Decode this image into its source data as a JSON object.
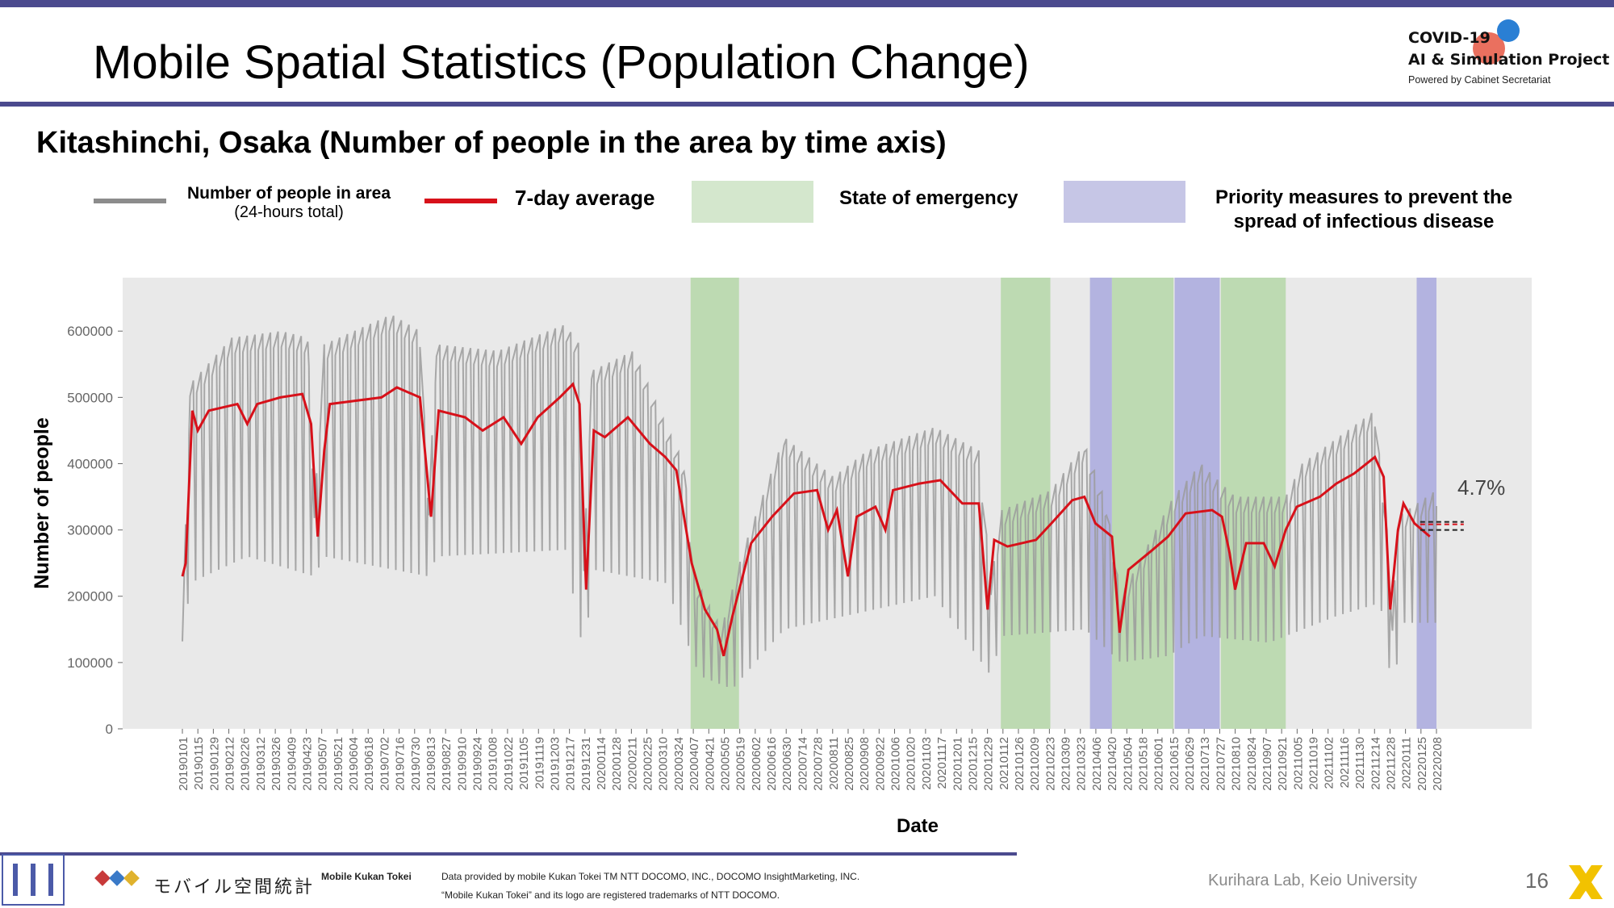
{
  "slide": {
    "title": "Mobile Spatial Statistics (Population Change)",
    "subtitle": "Kitashinchi, Osaka (Number of people in the area by time axis)",
    "page_number": "16",
    "credit": "Kurihara Lab, Keio University"
  },
  "logo": {
    "line1": "COVID-19",
    "line2": "AI & Simulation Project",
    "line3": "Powered by Cabinet Secretariat"
  },
  "legend": {
    "raw_line": "Number of people in area",
    "raw_line_sub": "(24-hours total)",
    "avg_line": "7-day average",
    "emergency": "State of emergency",
    "priority_1": "Priority measures to prevent the",
    "priority_2": "spread of infectious disease"
  },
  "footer": {
    "brand_jp": "モバイル空間統計",
    "brand_en": "Mobile Kukan Tokei",
    "note1": "Data provided by mobile Kukan Tokei TM NTT DOCOMO, INC., DOCOMO InsightMarketing, INC.",
    "note2": "“Mobile Kukan Tokei” and its logo are registered trademarks of NTT DOCOMO."
  },
  "colors": {
    "accent": "#4b4a8e",
    "raw_series": "#9b9b9b",
    "avg_series": "#d7111a",
    "emergency": "#b5d7a8",
    "priority": "#a9a9de",
    "plot_bg": "#e9e9e9"
  },
  "chart_data": {
    "type": "line",
    "xlabel": "Date",
    "ylabel": "Number of people",
    "ylim": [
      0,
      650000
    ],
    "yticks": [
      0,
      100000,
      200000,
      300000,
      400000,
      500000,
      600000
    ],
    "ytick_labels": [
      "0",
      "100000",
      "200000",
      "300000",
      "400000",
      "500000",
      "600000"
    ],
    "x_tick_labels": [
      "20190101",
      "20190115",
      "20190129",
      "20190212",
      "20190226",
      "20190312",
      "20190326",
      "20190409",
      "20190423",
      "20190507",
      "20190521",
      "20190604",
      "20190618",
      "20190702",
      "20190716",
      "20190730",
      "20190813",
      "20190827",
      "20190910",
      "20190924",
      "20191008",
      "20191022",
      "20191105",
      "20191119",
      "20191203",
      "20191217",
      "20191231",
      "20200114",
      "20200128",
      "20200211",
      "20200225",
      "20200310",
      "20200324",
      "20200407",
      "20200421",
      "20200505",
      "20200519",
      "20200602",
      "20200616",
      "20200630",
      "20200714",
      "20200728",
      "20200811",
      "20200825",
      "20200908",
      "20200922",
      "20201006",
      "20201020",
      "20201103",
      "20201117",
      "20201201",
      "20201215",
      "20201229",
      "20210112",
      "20210126",
      "20210209",
      "20210223",
      "20210309",
      "20210323",
      "20210406",
      "20210420",
      "20210504",
      "20210518",
      "20210601",
      "20210615",
      "20210629",
      "20210713",
      "20210727",
      "20210810",
      "20210824",
      "20210907",
      "20210921",
      "20211005",
      "20211019",
      "20211102",
      "20211116",
      "20211130",
      "20211214",
      "20211228",
      "20220111",
      "20220125",
      "20220208"
    ],
    "x_range": [
      "2019-01-01",
      "2022-02-14"
    ],
    "shaded_periods": [
      {
        "kind": "emergency",
        "start": "2020-04-07",
        "end": "2020-05-21"
      },
      {
        "kind": "emergency",
        "start": "2021-01-14",
        "end": "2021-02-28"
      },
      {
        "kind": "priority",
        "start": "2021-04-05",
        "end": "2021-04-25"
      },
      {
        "kind": "emergency",
        "start": "2021-04-25",
        "end": "2021-06-20"
      },
      {
        "kind": "priority",
        "start": "2021-06-21",
        "end": "2021-08-01"
      },
      {
        "kind": "emergency",
        "start": "2021-08-02",
        "end": "2021-09-30"
      },
      {
        "kind": "priority",
        "start": "2022-01-27",
        "end": "2022-02-14"
      }
    ],
    "series": [
      {
        "name": "Number of people in area",
        "style": "weekly oscillation: weekday peaks (upper envelope) and weekend troughs (lower envelope)",
        "upper_envelope": [
          {
            "x": "2019-01-01",
            "y": 150000
          },
          {
            "x": "2019-01-08",
            "y": 520000
          },
          {
            "x": "2019-02-15",
            "y": 590000
          },
          {
            "x": "2019-04-01",
            "y": 600000
          },
          {
            "x": "2019-04-25",
            "y": 590000
          },
          {
            "x": "2019-05-01",
            "y": 330000
          },
          {
            "x": "2019-05-10",
            "y": 580000
          },
          {
            "x": "2019-07-10",
            "y": 625000
          },
          {
            "x": "2019-08-05",
            "y": 600000
          },
          {
            "x": "2019-08-13",
            "y": 340000
          },
          {
            "x": "2019-08-20",
            "y": 580000
          },
          {
            "x": "2019-10-15",
            "y": 570000
          },
          {
            "x": "2019-12-15",
            "y": 610000
          },
          {
            "x": "2019-12-28",
            "y": 580000
          },
          {
            "x": "2020-01-01",
            "y": 250000
          },
          {
            "x": "2020-01-08",
            "y": 540000
          },
          {
            "x": "2020-02-15",
            "y": 570000
          },
          {
            "x": "2020-03-15",
            "y": 460000
          },
          {
            "x": "2020-04-01",
            "y": 400000
          },
          {
            "x": "2020-04-10",
            "y": 230000
          },
          {
            "x": "2020-05-05",
            "y": 150000
          },
          {
            "x": "2020-05-25",
            "y": 270000
          },
          {
            "x": "2020-07-01",
            "y": 440000
          },
          {
            "x": "2020-08-15",
            "y": 380000
          },
          {
            "x": "2020-09-15",
            "y": 420000
          },
          {
            "x": "2020-11-15",
            "y": 455000
          },
          {
            "x": "2020-12-25",
            "y": 420000
          },
          {
            "x": "2021-01-05",
            "y": 220000
          },
          {
            "x": "2021-01-15",
            "y": 330000
          },
          {
            "x": "2021-03-01",
            "y": 360000
          },
          {
            "x": "2021-03-31",
            "y": 430000
          },
          {
            "x": "2021-04-20",
            "y": 340000
          },
          {
            "x": "2021-05-03",
            "y": 200000
          },
          {
            "x": "2021-06-20",
            "y": 350000
          },
          {
            "x": "2021-07-15",
            "y": 400000
          },
          {
            "x": "2021-08-15",
            "y": 350000
          },
          {
            "x": "2021-09-30",
            "y": 350000
          },
          {
            "x": "2021-10-15",
            "y": 400000
          },
          {
            "x": "2021-12-20",
            "y": 480000
          },
          {
            "x": "2021-12-31",
            "y": 300000
          },
          {
            "x": "2022-01-05",
            "y": 160000
          },
          {
            "x": "2022-01-10",
            "y": 320000
          },
          {
            "x": "2022-02-14",
            "y": 360000
          }
        ],
        "lower_envelope": [
          {
            "x": "2019-01-01",
            "y": 110000
          },
          {
            "x": "2019-01-08",
            "y": 220000
          },
          {
            "x": "2019-03-01",
            "y": 260000
          },
          {
            "x": "2019-05-01",
            "y": 230000
          },
          {
            "x": "2019-05-10",
            "y": 260000
          },
          {
            "x": "2019-08-13",
            "y": 230000
          },
          {
            "x": "2019-08-20",
            "y": 260000
          },
          {
            "x": "2019-12-15",
            "y": 270000
          },
          {
            "x": "2020-01-01",
            "y": 110000
          },
          {
            "x": "2020-01-10",
            "y": 240000
          },
          {
            "x": "2020-03-15",
            "y": 220000
          },
          {
            "x": "2020-04-15",
            "y": 80000
          },
          {
            "x": "2020-05-15",
            "y": 60000
          },
          {
            "x": "2020-07-01",
            "y": 150000
          },
          {
            "x": "2020-11-15",
            "y": 200000
          },
          {
            "x": "2021-01-05",
            "y": 80000
          },
          {
            "x": "2021-01-15",
            "y": 140000
          },
          {
            "x": "2021-04-01",
            "y": 150000
          },
          {
            "x": "2021-05-03",
            "y": 100000
          },
          {
            "x": "2021-06-15",
            "y": 110000
          },
          {
            "x": "2021-07-15",
            "y": 140000
          },
          {
            "x": "2021-09-15",
            "y": 130000
          },
          {
            "x": "2021-11-15",
            "y": 170000
          },
          {
            "x": "2021-12-25",
            "y": 190000
          },
          {
            "x": "2022-01-05",
            "y": 55000
          },
          {
            "x": "2022-01-15",
            "y": 160000
          },
          {
            "x": "2022-02-14",
            "y": 160000
          }
        ]
      },
      {
        "name": "7-day average",
        "points": [
          {
            "x": "2019-01-01",
            "y": 230000
          },
          {
            "x": "2019-01-04",
            "y": 250000
          },
          {
            "x": "2019-01-10",
            "y": 480000
          },
          {
            "x": "2019-01-15",
            "y": 450000
          },
          {
            "x": "2019-01-25",
            "y": 480000
          },
          {
            "x": "2019-02-20",
            "y": 490000
          },
          {
            "x": "2019-03-01",
            "y": 460000
          },
          {
            "x": "2019-03-10",
            "y": 490000
          },
          {
            "x": "2019-03-31",
            "y": 500000
          },
          {
            "x": "2019-04-20",
            "y": 505000
          },
          {
            "x": "2019-04-28",
            "y": 460000
          },
          {
            "x": "2019-05-04",
            "y": 290000
          },
          {
            "x": "2019-05-10",
            "y": 420000
          },
          {
            "x": "2019-05-15",
            "y": 490000
          },
          {
            "x": "2019-07-01",
            "y": 500000
          },
          {
            "x": "2019-07-15",
            "y": 515000
          },
          {
            "x": "2019-08-05",
            "y": 500000
          },
          {
            "x": "2019-08-15",
            "y": 320000
          },
          {
            "x": "2019-08-22",
            "y": 480000
          },
          {
            "x": "2019-09-15",
            "y": 470000
          },
          {
            "x": "2019-10-01",
            "y": 450000
          },
          {
            "x": "2019-10-20",
            "y": 470000
          },
          {
            "x": "2019-11-05",
            "y": 430000
          },
          {
            "x": "2019-11-20",
            "y": 470000
          },
          {
            "x": "2019-12-10",
            "y": 500000
          },
          {
            "x": "2019-12-22",
            "y": 520000
          },
          {
            "x": "2019-12-28",
            "y": 490000
          },
          {
            "x": "2020-01-03",
            "y": 210000
          },
          {
            "x": "2020-01-10",
            "y": 450000
          },
          {
            "x": "2020-01-20",
            "y": 440000
          },
          {
            "x": "2020-02-10",
            "y": 470000
          },
          {
            "x": "2020-03-01",
            "y": 430000
          },
          {
            "x": "2020-03-15",
            "y": 410000
          },
          {
            "x": "2020-03-25",
            "y": 390000
          },
          {
            "x": "2020-04-08",
            "y": 250000
          },
          {
            "x": "2020-04-20",
            "y": 180000
          },
          {
            "x": "2020-05-01",
            "y": 150000
          },
          {
            "x": "2020-05-07",
            "y": 110000
          },
          {
            "x": "2020-05-15",
            "y": 170000
          },
          {
            "x": "2020-06-01",
            "y": 280000
          },
          {
            "x": "2020-06-20",
            "y": 320000
          },
          {
            "x": "2020-07-10",
            "y": 355000
          },
          {
            "x": "2020-07-31",
            "y": 360000
          },
          {
            "x": "2020-08-10",
            "y": 300000
          },
          {
            "x": "2020-08-18",
            "y": 330000
          },
          {
            "x": "2020-08-28",
            "y": 230000
          },
          {
            "x": "2020-09-05",
            "y": 320000
          },
          {
            "x": "2020-09-22",
            "y": 335000
          },
          {
            "x": "2020-10-01",
            "y": 300000
          },
          {
            "x": "2020-10-08",
            "y": 360000
          },
          {
            "x": "2020-11-01",
            "y": 370000
          },
          {
            "x": "2020-11-20",
            "y": 375000
          },
          {
            "x": "2020-12-10",
            "y": 340000
          },
          {
            "x": "2020-12-25",
            "y": 340000
          },
          {
            "x": "2021-01-02",
            "y": 180000
          },
          {
            "x": "2021-01-08",
            "y": 285000
          },
          {
            "x": "2021-01-20",
            "y": 275000
          },
          {
            "x": "2021-02-15",
            "y": 285000
          },
          {
            "x": "2021-03-01",
            "y": 310000
          },
          {
            "x": "2021-03-20",
            "y": 345000
          },
          {
            "x": "2021-03-31",
            "y": 350000
          },
          {
            "x": "2021-04-10",
            "y": 310000
          },
          {
            "x": "2021-04-25",
            "y": 290000
          },
          {
            "x": "2021-05-02",
            "y": 145000
          },
          {
            "x": "2021-05-10",
            "y": 240000
          },
          {
            "x": "2021-06-01",
            "y": 270000
          },
          {
            "x": "2021-06-15",
            "y": 290000
          },
          {
            "x": "2021-07-01",
            "y": 325000
          },
          {
            "x": "2021-07-25",
            "y": 330000
          },
          {
            "x": "2021-08-03",
            "y": 320000
          },
          {
            "x": "2021-08-10",
            "y": 265000
          },
          {
            "x": "2021-08-15",
            "y": 210000
          },
          {
            "x": "2021-08-25",
            "y": 280000
          },
          {
            "x": "2021-09-10",
            "y": 280000
          },
          {
            "x": "2021-09-20",
            "y": 245000
          },
          {
            "x": "2021-09-30",
            "y": 300000
          },
          {
            "x": "2021-10-10",
            "y": 335000
          },
          {
            "x": "2021-10-31",
            "y": 350000
          },
          {
            "x": "2021-11-15",
            "y": 370000
          },
          {
            "x": "2021-12-01",
            "y": 385000
          },
          {
            "x": "2021-12-20",
            "y": 410000
          },
          {
            "x": "2021-12-28",
            "y": 380000
          },
          {
            "x": "2022-01-03",
            "y": 180000
          },
          {
            "x": "2022-01-10",
            "y": 300000
          },
          {
            "x": "2022-01-15",
            "y": 340000
          },
          {
            "x": "2022-01-25",
            "y": 310000
          },
          {
            "x": "2022-02-01",
            "y": 300000
          },
          {
            "x": "2022-02-08",
            "y": 290000
          }
        ]
      }
    ],
    "annotation": {
      "text": "4.7%",
      "x": "2022-02-08",
      "y": 300000
    }
  }
}
